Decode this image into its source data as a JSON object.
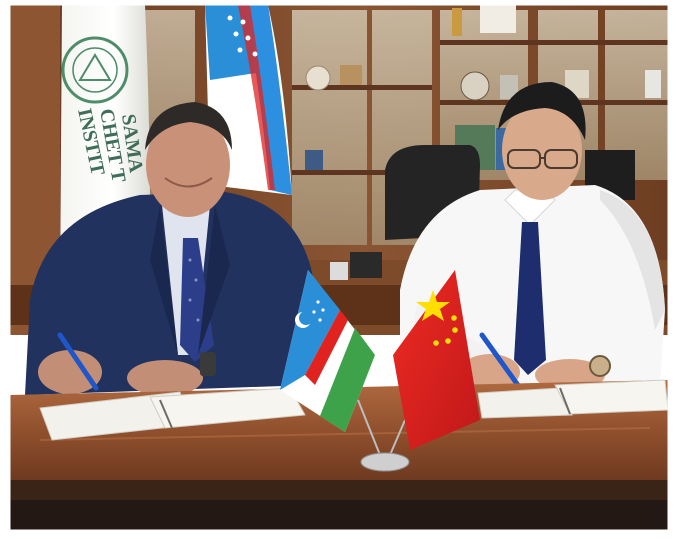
{
  "photo": {
    "subject": "",
    "banner_text_lines": [
      "SAMA",
      "CHET T",
      "INSTIT"
    ]
  },
  "colors": {
    "uz_blue": "#2a8fd6",
    "uz_green": "#3ea24a",
    "cn_red": "#e0231f",
    "cn_star": "#ffde00",
    "table_wood": "#9b5a36",
    "cabinet_wood": "#7a4a2c",
    "suit_navy": "#22325e"
  }
}
